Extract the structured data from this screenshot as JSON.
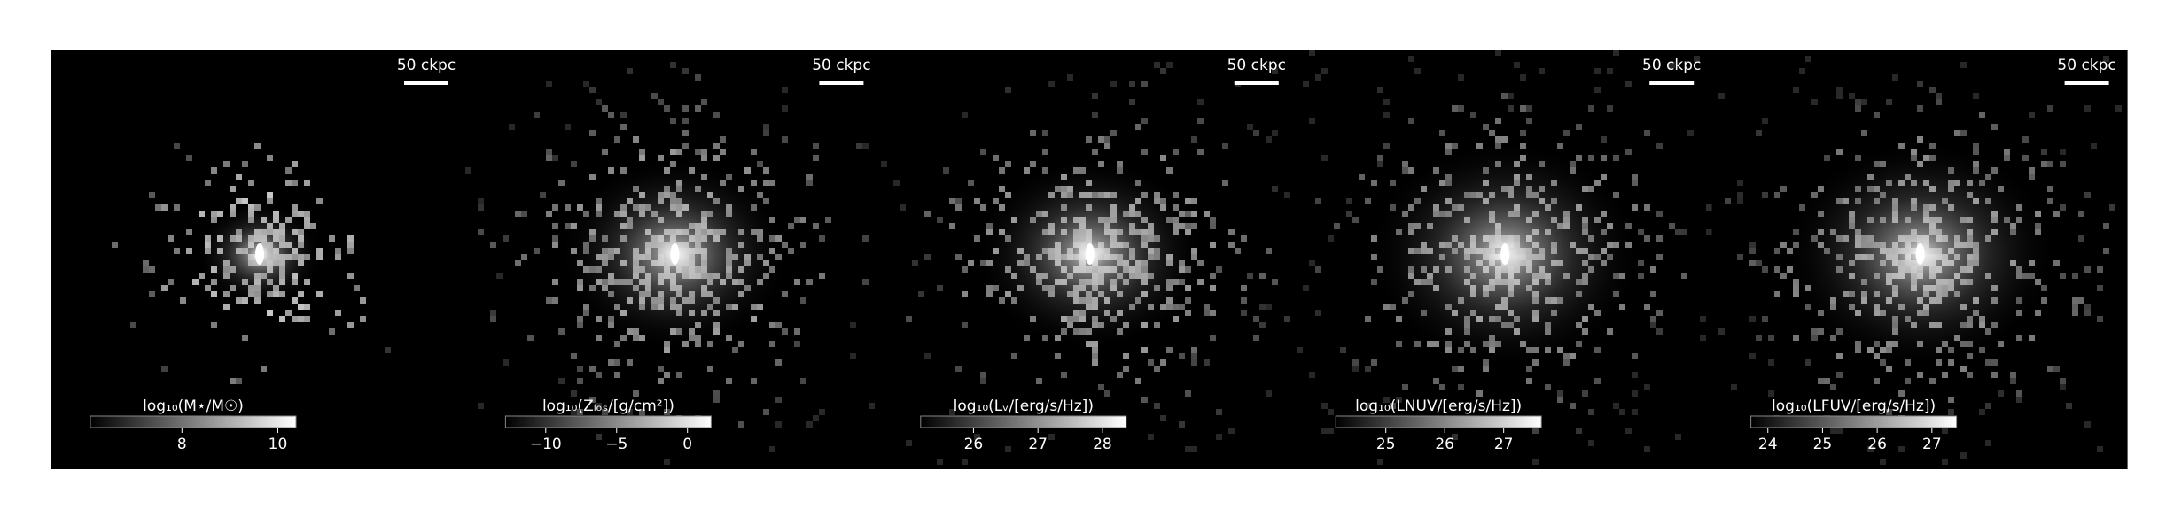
{
  "panels": [
    {
      "scalebar": "50 ckpc",
      "colorbar": {
        "label": "log₁₀(M⋆/M☉)",
        "lim": [
          6.09,
          10.38
        ],
        "ticks": [
          8,
          10
        ]
      }
    },
    {
      "scalebar": "50 ckpc",
      "colorbar": {
        "label": "log₁₀(Zₗₒₛ/[g/cm²])",
        "lim": [
          -12.84,
          1.67
        ],
        "ticks": [
          {
            "value": -10,
            "label": "−10"
          },
          {
            "value": -5,
            "label": "−5"
          },
          0
        ]
      }
    },
    {
      "scalebar": "50 ckpc",
      "colorbar": {
        "label": "log₁₀(Lᵥ/[erg/s/Hz])",
        "lim": [
          25.18,
          28.37
        ],
        "ticks": [
          26,
          27,
          28
        ]
      }
    },
    {
      "scalebar": "50 ckpc",
      "colorbar": {
        "label": "log₁₀(LNUV/[erg/s/Hz])",
        "lim": [
          24.15,
          27.64
        ],
        "ticks": [
          25,
          26,
          27
        ]
      }
    },
    {
      "scalebar": "50 ckpc",
      "colorbar": {
        "label": "log₁₀(LFUV/[erg/s/Hz])",
        "lim": [
          23.69,
          27.45
        ],
        "ticks": [
          24,
          25,
          26,
          27
        ]
      }
    }
  ]
}
